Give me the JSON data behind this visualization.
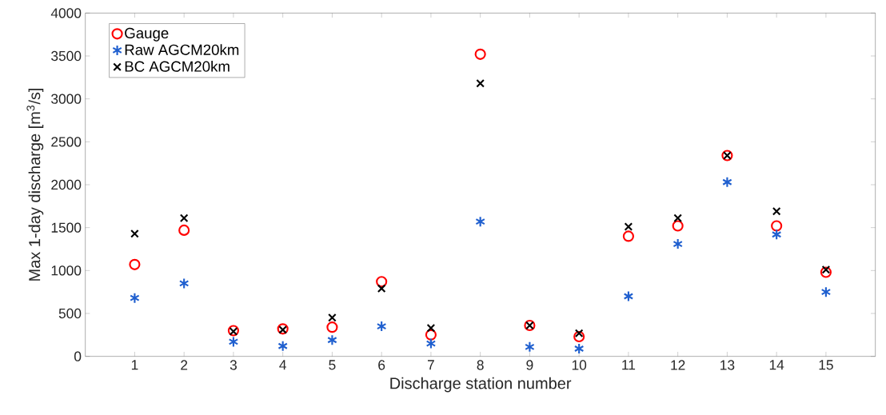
{
  "chart_data": {
    "type": "scatter",
    "xlabel": "Discharge station number",
    "ylabel": "Max 1-day discharge [m$^{3}$/s]",
    "categories": [
      "1",
      "2",
      "3",
      "4",
      "5",
      "6",
      "7",
      "8",
      "9",
      "10",
      "11",
      "12",
      "13",
      "14",
      "15"
    ],
    "series": [
      {
        "name": "Gauge",
        "color": "#ff0000",
        "marker": "circle",
        "values": [
          1070,
          1470,
          300,
          320,
          340,
          870,
          250,
          3520,
          360,
          230,
          1400,
          1520,
          2340,
          1520,
          980
        ]
      },
      {
        "name": "Raw AGCM20km",
        "color": "#1f5fcf",
        "values": [
          680,
          850,
          170,
          120,
          190,
          350,
          150,
          1570,
          110,
          90,
          700,
          1310,
          2030,
          1420,
          750
        ]
      },
      {
        "name": "BC AGCM20km",
        "color": "#000000",
        "marker": "cross",
        "values": [
          1430,
          1610,
          290,
          310,
          450,
          790,
          330,
          3180,
          360,
          270,
          1510,
          1610,
          2340,
          1690,
          1010
        ]
      }
    ],
    "ylim": [
      0,
      4000
    ],
    "yticks": [
      0,
      500,
      1000,
      1500,
      2000,
      2500,
      3000,
      3500,
      4000
    ],
    "legend": "top left",
    "grid": false
  }
}
